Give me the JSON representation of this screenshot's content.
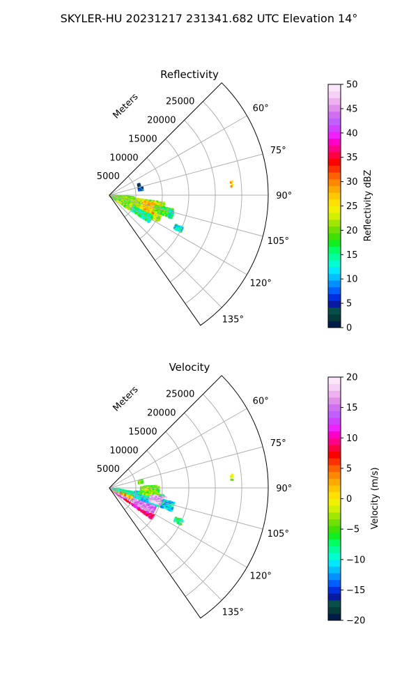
{
  "figure": {
    "suptitle": "SKYLER-HU  20231217  231341.682 UTC Elevation 14°"
  },
  "chart_data": [
    {
      "type": "heatmap",
      "title": "Reflectivity",
      "projection": "polar sector",
      "radial_axis_label": "Meters",
      "radial_ticks": [
        5000,
        10000,
        15000,
        20000,
        25000
      ],
      "radial_tick_labels": [
        "5000",
        "10000",
        "15000",
        "20000",
        "25000"
      ],
      "rlim": [
        0,
        30000
      ],
      "theta_ticks_deg": [
        60,
        75,
        90,
        105,
        120,
        135
      ],
      "theta_tick_labels": [
        "60°",
        "75°",
        "90°",
        "105°",
        "120°",
        "135°"
      ],
      "theta_range_deg": [
        45,
        145
      ],
      "grid": true,
      "colorbar": {
        "label": "Reflectivity dBZ",
        "range": [
          0,
          50
        ],
        "ticks": [
          0,
          5,
          10,
          15,
          20,
          25,
          30,
          35,
          40,
          45,
          50
        ],
        "tick_labels": [
          "0",
          "5",
          "10",
          "15",
          "20",
          "25",
          "30",
          "35",
          "40",
          "45",
          "50"
        ],
        "colors": [
          "#021c4a",
          "#043a3a",
          "#064f4a",
          "#0a1aa0",
          "#0030e0",
          "#0060ff",
          "#0090ff",
          "#00c0ff",
          "#00e8ff",
          "#00ffd0",
          "#00ff9a",
          "#00ff60",
          "#10f020",
          "#40e000",
          "#70e000",
          "#a0e800",
          "#d0f000",
          "#f0f000",
          "#ffe000",
          "#ffc800",
          "#ffa800",
          "#ff8800",
          "#ff6000",
          "#ff3000",
          "#ff0000",
          "#ff0040",
          "#ff0088",
          "#ff00c8",
          "#f020ff",
          "#d040ff",
          "#c060ff",
          "#d070f0",
          "#e090e8",
          "#eeb0ee",
          "#f6d0f6",
          "#fbe6fb"
        ]
      },
      "echoes": [
        {
          "az": [
            95,
            125
          ],
          "r": [
            200,
            4600
          ],
          "value": 20
        },
        {
          "az": [
            98,
            118
          ],
          "r": [
            4500,
            10500
          ],
          "value": 22
        },
        {
          "az": [
            100,
            112
          ],
          "r": [
            6500,
            10000
          ],
          "value": 27
        },
        {
          "az": [
            103,
            110
          ],
          "r": [
            9000,
            12500
          ],
          "value": 19
        },
        {
          "az": [
            104,
            110
          ],
          "r": [
            11800,
            12600
          ],
          "value": 14
        },
        {
          "az": [
            116,
            124
          ],
          "r": [
            5000,
            9000
          ],
          "value": 15
        },
        {
          "az": [
            76,
            81
          ],
          "r": [
            5700,
            6400
          ],
          "value": 6
        },
        {
          "az": [
            70,
            73
          ],
          "r": [
            5800,
            6100
          ],
          "value": 5
        },
        {
          "az": [
            114,
            117
          ],
          "r": [
            13800,
            15300
          ],
          "value": 13
        },
        {
          "az": [
            84,
            86
          ],
          "r": [
            23100,
            23500
          ],
          "value": 26
        }
      ]
    },
    {
      "type": "heatmap",
      "title": "Velocity",
      "projection": "polar sector",
      "radial_axis_label": "Meters",
      "radial_ticks": [
        5000,
        10000,
        15000,
        20000,
        25000
      ],
      "radial_tick_labels": [
        "5000",
        "10000",
        "15000",
        "20000",
        "25000"
      ],
      "rlim": [
        0,
        30000
      ],
      "theta_ticks_deg": [
        60,
        75,
        90,
        105,
        120,
        135
      ],
      "theta_tick_labels": [
        "60°",
        "75°",
        "90°",
        "105°",
        "120°",
        "135°"
      ],
      "theta_range_deg": [
        45,
        145
      ],
      "grid": true,
      "colorbar": {
        "label": "Velocity (m/s)",
        "range": [
          -20,
          20
        ],
        "ticks": [
          -20,
          -15,
          -10,
          -5,
          0,
          5,
          10,
          15,
          20
        ],
        "tick_labels": [
          "−20",
          "−15",
          "−10",
          "−5",
          "0",
          "5",
          "10",
          "15",
          "20"
        ],
        "colors": [
          "#021c4a",
          "#043a3a",
          "#064f4a",
          "#0a1aa0",
          "#0030e0",
          "#0060ff",
          "#0090ff",
          "#00c0ff",
          "#00e8ff",
          "#00ffd0",
          "#00ff9a",
          "#00ff60",
          "#10f020",
          "#40e000",
          "#70e000",
          "#a0e800",
          "#d0f000",
          "#f0f000",
          "#ffe000",
          "#ffc800",
          "#ffa800",
          "#ff8800",
          "#ff6000",
          "#ff3000",
          "#ff0000",
          "#ff0040",
          "#ff0088",
          "#ff00c8",
          "#f020ff",
          "#d040ff",
          "#c060ff",
          "#d070f0",
          "#e090e8",
          "#eeb0ee",
          "#f6d0f6",
          "#fbe6fb"
        ]
      },
      "echoes": [
        {
          "az": [
            122,
            126
          ],
          "r": [
            400,
            10000
          ],
          "value": 10
        },
        {
          "az": [
            116,
            121
          ],
          "r": [
            400,
            8500
          ],
          "value": 17
        },
        {
          "az": [
            108,
            115
          ],
          "r": [
            400,
            7000
          ],
          "value": 2
        },
        {
          "az": [
            100,
            106
          ],
          "r": [
            500,
            5000
          ],
          "value": -9
        },
        {
          "az": [
            110,
            120
          ],
          "r": [
            5000,
            9500
          ],
          "value": 15
        },
        {
          "az": [
            98,
            110
          ],
          "r": [
            5000,
            10500
          ],
          "value": -10
        },
        {
          "az": [
            88,
            100
          ],
          "r": [
            6000,
            9500
          ],
          "value": -4
        },
        {
          "az": [
            100,
            108
          ],
          "r": [
            8000,
            11000
          ],
          "value": 17
        },
        {
          "az": [
            103,
            110
          ],
          "r": [
            10500,
            12500
          ],
          "value": -11
        },
        {
          "az": [
            114,
            117
          ],
          "r": [
            13800,
            15300
          ],
          "value": -7
        },
        {
          "az": [
            76,
            81
          ],
          "r": [
            5700,
            6400
          ],
          "value": -4
        },
        {
          "az": [
            84,
            86
          ],
          "r": [
            23100,
            23500
          ],
          "value": -2
        }
      ]
    }
  ]
}
